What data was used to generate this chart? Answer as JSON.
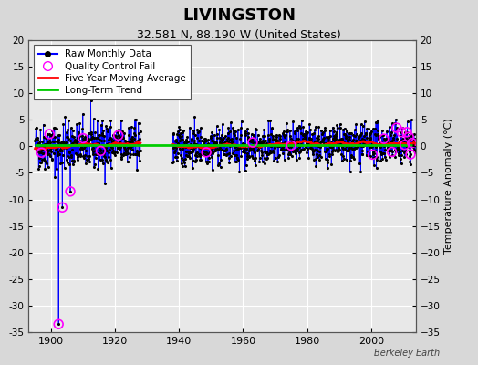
{
  "title": "LIVINGSTON",
  "subtitle": "32.581 N, 88.190 W (United States)",
  "ylabel": "Temperature Anomaly (°C)",
  "watermark": "Berkeley Earth",
  "xlim": [
    1893,
    2014
  ],
  "ylim": [
    -35,
    20
  ],
  "yticks": [
    -35,
    -30,
    -25,
    -20,
    -15,
    -10,
    -5,
    0,
    5,
    10,
    15,
    20
  ],
  "xticks": [
    1900,
    1920,
    1940,
    1960,
    1980,
    2000
  ],
  "raw_color": "#0000ff",
  "raw_dot_color": "#000000",
  "qc_fail_color": "#ff00ff",
  "moving_avg_color": "#ff0000",
  "trend_color": "#00cc00",
  "bg_color": "#d8d8d8",
  "plot_bg_color": "#e8e8e8",
  "grid_color": "#ffffff",
  "seed": 42,
  "gap_start": 1928,
  "gap_end": 1938,
  "data_start": 1895,
  "data_end": 2013,
  "noise_scale1": 2.2,
  "noise_scale2": 1.8,
  "outlier_value": -33.5
}
